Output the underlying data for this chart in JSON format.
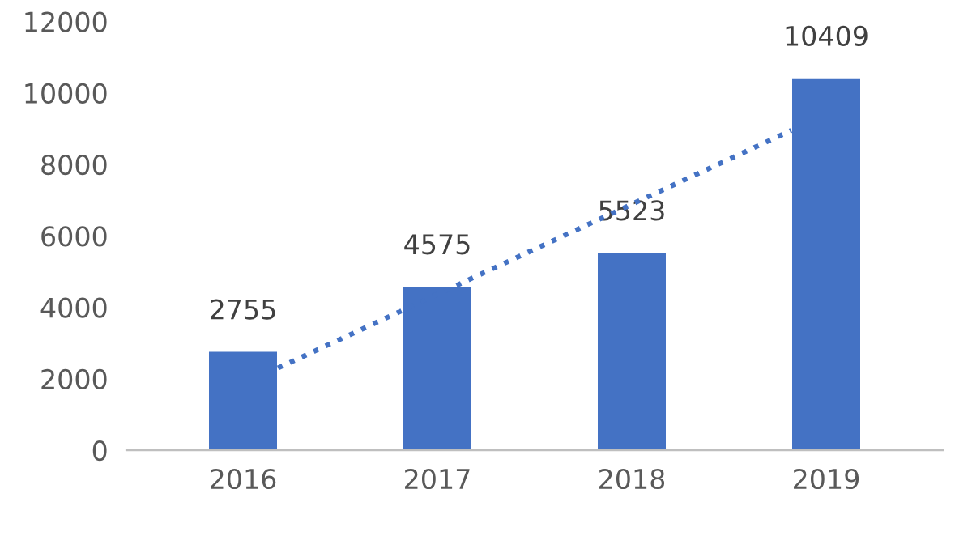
{
  "chart_data": {
    "type": "bar",
    "x": [
      2016,
      2017,
      2018,
      2019
    ],
    "series": [
      {
        "color": "#4472c4",
        "values": [
          2755,
          4575,
          5523,
          10409
        ],
        "value_labels": [
          "2755",
          "4575",
          "5523",
          "10409"
        ]
      },
      {
        "type": "line",
        "color": "#4472c4",
        "line_style": "dotted",
        "x": [
          2016.18,
          2018.82
        ],
        "values": [
          2300,
          8950
        ]
      }
    ],
    "xlim": [
      2015.4,
      2019.6
    ],
    "xticks": [
      2016,
      2017,
      2018,
      2019
    ],
    "ylim": [
      0,
      12000
    ],
    "yticks": [
      0,
      2000,
      4000,
      6000,
      8000,
      10000,
      12000
    ],
    "grid": false,
    "legend": false
  }
}
